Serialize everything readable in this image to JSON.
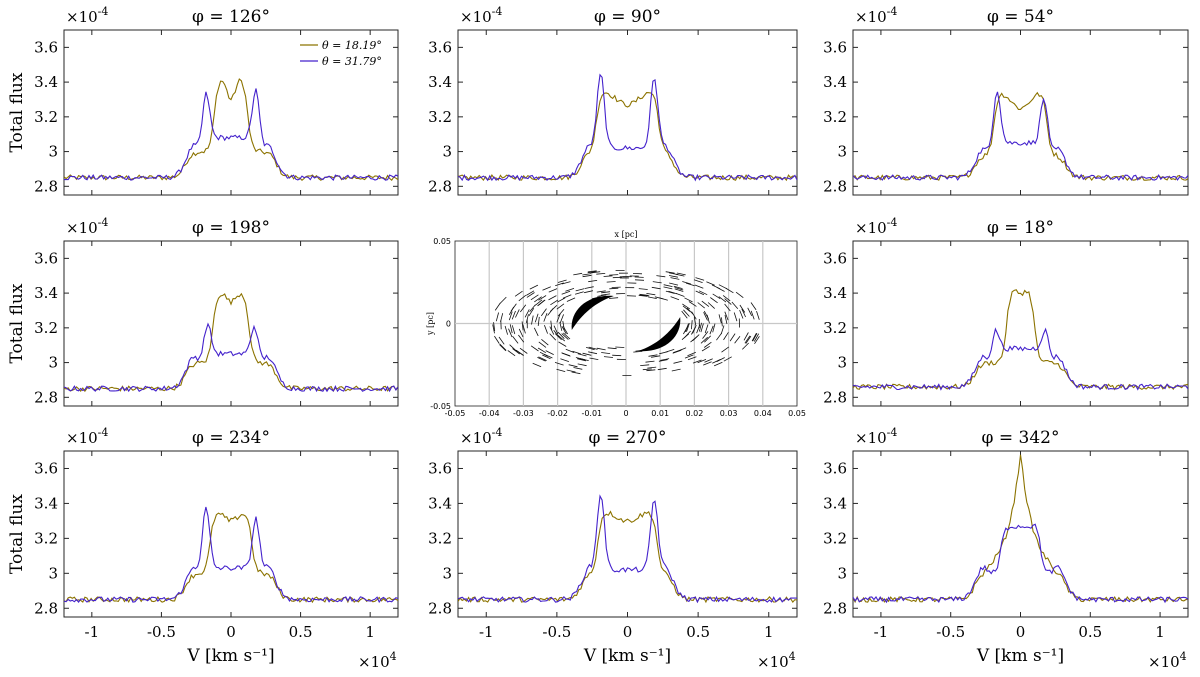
{
  "chart_data": {
    "type": "line",
    "legend": [
      {
        "label": "θ = 18.19°",
        "color": "#8C7300"
      },
      {
        "label": "θ = 31.79°",
        "color": "#4422CC"
      }
    ],
    "common": {
      "ylabel": "Total flux",
      "xlabel": "V [km s⁻¹]",
      "y_multiplier": "×10",
      "y_exponent": "-4",
      "x_multiplier": "×10",
      "x_exponent": "4",
      "xlim": [
        -12000,
        12000
      ],
      "ylim": [
        2.75,
        3.7
      ],
      "yticks": [
        2.8,
        3.0,
        3.2,
        3.4,
        3.6
      ],
      "ytick_labels": [
        "2.8",
        "3",
        "3.2",
        "3.4",
        "3.6"
      ],
      "xticks": [
        -10000,
        -5000,
        0,
        5000,
        10000
      ],
      "xtick_labels": [
        "-1",
        "-0.5",
        "0",
        "0.5",
        "1"
      ]
    },
    "panels": [
      {
        "phi": "φ = 126°",
        "baseline": 2.85,
        "s1": {
          "wing": 3.0,
          "peak_pos": 500,
          "peak": 3.43,
          "center_dip": 3.3
        },
        "s2": {
          "wing": 3.0,
          "horn_pos": 1800,
          "horn_left": 3.35,
          "horn_right": 3.37,
          "center": 3.08
        }
      },
      {
        "phi": "φ = 90°",
        "baseline": 2.85,
        "s1": {
          "wing": 3.0,
          "peak_pos": 1500,
          "peak": 3.36,
          "center_dip": 3.27
        },
        "s2": {
          "wing": 3.0,
          "horn_pos": 1900,
          "horn_left": 3.45,
          "horn_right": 3.43,
          "center": 3.02
        }
      },
      {
        "phi": "φ = 54°",
        "baseline": 2.85,
        "s1": {
          "wing": 2.98,
          "peak_pos": 1200,
          "peak": 3.35,
          "center_dip": 3.25
        },
        "s2": {
          "wing": 2.98,
          "horn_pos": 1700,
          "horn_left": 3.37,
          "horn_right": 3.32,
          "center": 3.05
        }
      },
      {
        "phi": "φ = 198°",
        "baseline": 2.85,
        "s1": {
          "wing": 3.0,
          "peak_pos": 600,
          "peak": 3.41,
          "center_dip": 3.35
        },
        "s2": {
          "wing": 3.0,
          "horn_pos": 1700,
          "horn_left": 3.23,
          "horn_right": 3.22,
          "center": 3.05
        }
      },
      {
        "phi": "φ = 18°",
        "baseline": 2.86,
        "s1": {
          "wing": 3.0,
          "peak_pos": 300,
          "peak": 3.43,
          "center_dip": 3.4
        },
        "s2": {
          "wing": 3.0,
          "horn_pos": 1800,
          "horn_left": 3.2,
          "horn_right": 3.2,
          "center": 3.08
        }
      },
      {
        "phi": "φ = 234°",
        "baseline": 2.85,
        "s1": {
          "wing": 3.0,
          "peak_pos": 800,
          "peak": 3.35,
          "center_dip": 3.3
        },
        "s2": {
          "wing": 3.0,
          "horn_pos": 1800,
          "horn_left": 3.38,
          "horn_right": 3.32,
          "center": 3.03
        }
      },
      {
        "phi": "φ = 270°",
        "baseline": 2.85,
        "s1": {
          "wing": 3.0,
          "peak_pos": 1400,
          "peak": 3.36,
          "center_dip": 3.3
        },
        "s2": {
          "wing": 3.0,
          "horn_pos": 1900,
          "horn_left": 3.46,
          "horn_right": 3.43,
          "center": 3.02
        }
      },
      {
        "phi": "φ = 342°",
        "baseline": 2.85,
        "s1": {
          "wing": 3.0,
          "peak_pos": 0,
          "peak": 3.69,
          "center_dip": 3.69
        },
        "s2": {
          "wing": 3.0,
          "horn_pos": 1300,
          "horn_left": 3.25,
          "horn_right": 3.28,
          "center": 3.27
        }
      }
    ],
    "center_map": {
      "type": "scatter",
      "title": "x [pc]",
      "ylabel": "y [pc]",
      "xlim": [
        -0.05,
        0.05
      ],
      "ylim": [
        -0.05,
        0.05
      ],
      "xticks": [
        -0.05,
        -0.04,
        -0.03,
        -0.02,
        -0.01,
        0,
        0.01,
        0.02,
        0.03,
        0.04,
        0.05
      ],
      "xtick_labels": [
        "-0.05",
        "-0.04",
        "-0.03",
        "-0.02",
        "-0.01",
        "0",
        "0.01",
        "0.02",
        "0.03",
        "0.04",
        "0.05"
      ],
      "yticks": [
        -0.05,
        0,
        0.05
      ],
      "ytick_labels": [
        "-0.05",
        "0",
        "0.05"
      ],
      "ring_inner": 0.018,
      "ring_outer": 0.041,
      "ring_axis_ratio": 0.5,
      "clumps": [
        {
          "center": [
            -0.01,
            0.007
          ],
          "note": "upper-left crescent"
        },
        {
          "center": [
            0.01,
            -0.007
          ],
          "note": "lower-right crescent"
        }
      ]
    }
  }
}
